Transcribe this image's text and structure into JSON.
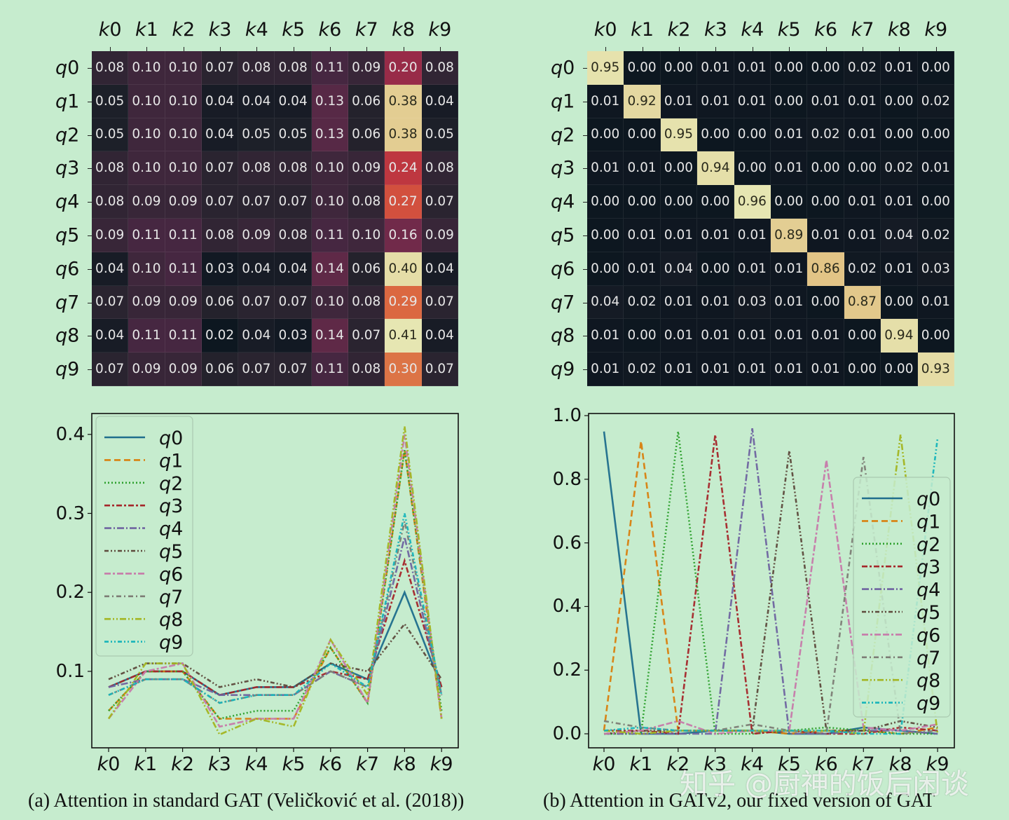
{
  "panels": {
    "a": {
      "caption": "(a) Attention in standard GAT (Veličković et al. (2018))"
    },
    "b": {
      "caption": "(b) Attention in GATv2, our fixed version of GAT"
    }
  },
  "watermark": "知乎 @厨神的饭后闲谈",
  "chart_data": [
    {
      "type": "heatmap",
      "title": "Attention in standard GAT (heatmap)",
      "x_labels": [
        "k0",
        "k1",
        "k2",
        "k3",
        "k4",
        "k5",
        "k6",
        "k7",
        "k8",
        "k9"
      ],
      "y_labels": [
        "q0",
        "q1",
        "q2",
        "q3",
        "q4",
        "q5",
        "q6",
        "q7",
        "q8",
        "q9"
      ],
      "colormap": "rocket",
      "values": [
        [
          0.08,
          0.1,
          0.1,
          0.07,
          0.08,
          0.08,
          0.11,
          0.09,
          0.2,
          0.08
        ],
        [
          0.05,
          0.1,
          0.1,
          0.04,
          0.04,
          0.04,
          0.13,
          0.06,
          0.38,
          0.04
        ],
        [
          0.05,
          0.1,
          0.1,
          0.04,
          0.05,
          0.05,
          0.13,
          0.06,
          0.38,
          0.05
        ],
        [
          0.08,
          0.1,
          0.1,
          0.07,
          0.08,
          0.08,
          0.1,
          0.09,
          0.24,
          0.08
        ],
        [
          0.08,
          0.09,
          0.09,
          0.07,
          0.07,
          0.07,
          0.1,
          0.08,
          0.27,
          0.07
        ],
        [
          0.09,
          0.11,
          0.11,
          0.08,
          0.09,
          0.08,
          0.11,
          0.1,
          0.16,
          0.09
        ],
        [
          0.04,
          0.1,
          0.11,
          0.03,
          0.04,
          0.04,
          0.14,
          0.06,
          0.4,
          0.04
        ],
        [
          0.07,
          0.09,
          0.09,
          0.06,
          0.07,
          0.07,
          0.1,
          0.08,
          0.29,
          0.07
        ],
        [
          0.04,
          0.11,
          0.11,
          0.02,
          0.04,
          0.03,
          0.14,
          0.07,
          0.41,
          0.04
        ],
        [
          0.07,
          0.09,
          0.09,
          0.06,
          0.07,
          0.07,
          0.11,
          0.08,
          0.3,
          0.07
        ]
      ]
    },
    {
      "type": "heatmap",
      "title": "Attention in GATv2 (heatmap)",
      "x_labels": [
        "k0",
        "k1",
        "k2",
        "k3",
        "k4",
        "k5",
        "k6",
        "k7",
        "k8",
        "k9"
      ],
      "y_labels": [
        "q0",
        "q1",
        "q2",
        "q3",
        "q4",
        "q5",
        "q6",
        "q7",
        "q8",
        "q9"
      ],
      "colormap": "rocket",
      "values": [
        [
          0.95,
          0.0,
          0.0,
          0.01,
          0.01,
          0.0,
          0.0,
          0.02,
          0.01,
          0.0
        ],
        [
          0.01,
          0.92,
          0.01,
          0.01,
          0.01,
          0.0,
          0.01,
          0.01,
          0.0,
          0.02
        ],
        [
          0.0,
          0.0,
          0.95,
          0.0,
          0.0,
          0.01,
          0.02,
          0.01,
          0.0,
          0.0
        ],
        [
          0.01,
          0.01,
          0.0,
          0.94,
          0.0,
          0.01,
          0.0,
          0.0,
          0.02,
          0.01
        ],
        [
          0.0,
          0.0,
          0.0,
          0.0,
          0.96,
          0.0,
          0.0,
          0.01,
          0.01,
          0.0
        ],
        [
          0.0,
          0.01,
          0.01,
          0.01,
          0.01,
          0.89,
          0.01,
          0.01,
          0.04,
          0.02
        ],
        [
          0.0,
          0.01,
          0.04,
          0.0,
          0.01,
          0.01,
          0.86,
          0.02,
          0.01,
          0.03
        ],
        [
          0.04,
          0.02,
          0.01,
          0.01,
          0.03,
          0.01,
          0.0,
          0.87,
          0.0,
          0.01
        ],
        [
          0.01,
          0.0,
          0.01,
          0.01,
          0.01,
          0.01,
          0.01,
          0.0,
          0.94,
          0.0
        ],
        [
          0.01,
          0.02,
          0.01,
          0.01,
          0.01,
          0.01,
          0.01,
          0.0,
          0.0,
          0.93
        ]
      ]
    },
    {
      "type": "line",
      "title": "Attention in standard GAT (per query)",
      "x": [
        "k0",
        "k1",
        "k2",
        "k3",
        "k4",
        "k5",
        "k6",
        "k7",
        "k8",
        "k9"
      ],
      "yticks": [
        "0.1",
        "0.2",
        "0.3",
        "0.4"
      ],
      "ylim": [
        0.01,
        0.43
      ],
      "legend_position": "upper left",
      "series_from": "chart_data.0.values"
    },
    {
      "type": "line",
      "title": "Attention in GATv2 (per query)",
      "x": [
        "k0",
        "k1",
        "k2",
        "k3",
        "k4",
        "k5",
        "k6",
        "k7",
        "k8",
        "k9"
      ],
      "yticks": [
        "0.0",
        "0.2",
        "0.4",
        "0.6",
        "0.8",
        "1.0"
      ],
      "ylim": [
        -0.04,
        1.0
      ],
      "legend_position": "center right",
      "series_from": "chart_data.1.values"
    }
  ],
  "series_styles": [
    {
      "name": "q0",
      "color": "#1f6e8c",
      "dash": ""
    },
    {
      "name": "q1",
      "color": "#d9800e",
      "dash": "9,5"
    },
    {
      "name": "q2",
      "color": "#2ca02c",
      "dash": "2,3"
    },
    {
      "name": "q3",
      "color": "#a5262a",
      "dash": "8,3,3,3"
    },
    {
      "name": "q4",
      "color": "#6f64a0",
      "dash": "10,3,2,3"
    },
    {
      "name": "q5",
      "color": "#5e4a3c",
      "dash": "6,3,2,3,2,3"
    },
    {
      "name": "q6",
      "color": "#c77aaa",
      "dash": "9,3,3,3,9,3"
    },
    {
      "name": "q7",
      "color": "#7d7d75",
      "dash": "7,4,2,4"
    },
    {
      "name": "q8",
      "color": "#a3b521",
      "dash": "9,3,2,3,2,3"
    },
    {
      "name": "q9",
      "color": "#17b4ba",
      "dash": "6,3,2,3,2,3"
    }
  ]
}
